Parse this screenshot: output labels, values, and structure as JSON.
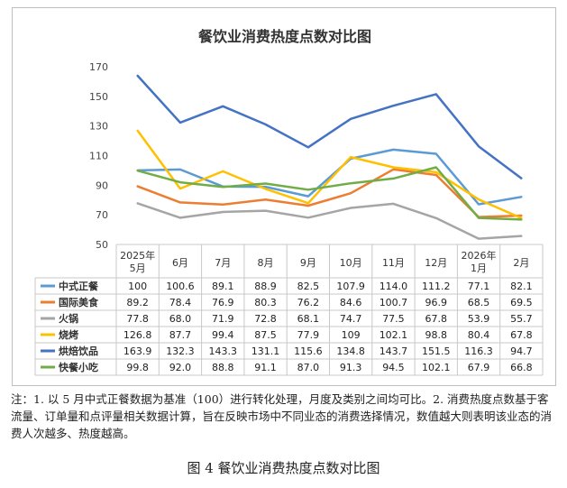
{
  "chart_data": {
    "type": "line",
    "title": "餐饮业消费热度点数对比图",
    "categories": [
      "2025年\n5月",
      "6月",
      "7月",
      "8月",
      "9月",
      "10月",
      "11月",
      "12月",
      "2026年\n1月",
      "2月"
    ],
    "ylim": [
      50,
      170
    ],
    "yticks": [
      50,
      70,
      90,
      110,
      130,
      150,
      170
    ],
    "grid": false,
    "legend": "data-table",
    "series": [
      {
        "name": "中式正餐",
        "color": "#5b9bd5",
        "values": [
          100,
          100.6,
          89.1,
          88.9,
          82.5,
          107.9,
          114.0,
          111.2,
          77.1,
          82.1
        ],
        "labels": [
          "100",
          "100.6",
          "89.1",
          "88.9",
          "82.5",
          "107.9",
          "114.0",
          "111.2",
          "77.1",
          "82.1"
        ]
      },
      {
        "name": "国际美食",
        "color": "#ed7d31",
        "values": [
          89.2,
          78.4,
          76.9,
          80.3,
          76.2,
          84.6,
          100.7,
          96.9,
          68.5,
          69.5
        ],
        "labels": [
          "89.2",
          "78.4",
          "76.9",
          "80.3",
          "76.2",
          "84.6",
          "100.7",
          "96.9",
          "68.5",
          "69.5"
        ]
      },
      {
        "name": "火锅",
        "color": "#a5a5a5",
        "values": [
          77.8,
          68.0,
          71.9,
          72.8,
          68.1,
          74.7,
          77.5,
          67.8,
          53.9,
          55.7
        ],
        "labels": [
          "77.8",
          "68.0",
          "71.9",
          "72.8",
          "68.1",
          "74.7",
          "77.5",
          "67.8",
          "53.9",
          "55.7"
        ]
      },
      {
        "name": "烧烤",
        "color": "#ffc000",
        "values": [
          126.8,
          87.7,
          99.4,
          87.5,
          77.9,
          109,
          102.1,
          98.8,
          80.4,
          67.8
        ],
        "labels": [
          "126.8",
          "87.7",
          "99.4",
          "87.5",
          "77.9",
          "109",
          "102.1",
          "98.8",
          "80.4",
          "67.8"
        ]
      },
      {
        "name": "烘焙饮品",
        "color": "#4472c4",
        "values": [
          163.9,
          132.3,
          143.3,
          131.1,
          115.6,
          134.8,
          143.7,
          151.5,
          116.3,
          94.7
        ],
        "labels": [
          "163.9",
          "132.3",
          "143.3",
          "131.1",
          "115.6",
          "134.8",
          "143.7",
          "151.5",
          "116.3",
          "94.7"
        ]
      },
      {
        "name": "快餐小吃",
        "color": "#70ad47",
        "values": [
          99.8,
          92.0,
          88.8,
          91.1,
          87.0,
          91.3,
          94.5,
          102.1,
          67.9,
          66.8
        ],
        "labels": [
          "99.8",
          "92.0",
          "88.8",
          "91.1",
          "87.0",
          "91.3",
          "94.5",
          "102.1",
          "67.9",
          "66.8"
        ]
      }
    ]
  },
  "note": "注：1. 以 5 月中式正餐数据为基准（100）进行转化处理，月度及类别之间均可比。2. 消费热度点数基于客流量、订单量和点评量相关数据计算，旨在反映市场中不同业态的消费选择情况，数值越大则表明该业态的消费人次越多、热度越高。",
  "caption": "图 4  餐饮业消费热度点数对比图"
}
